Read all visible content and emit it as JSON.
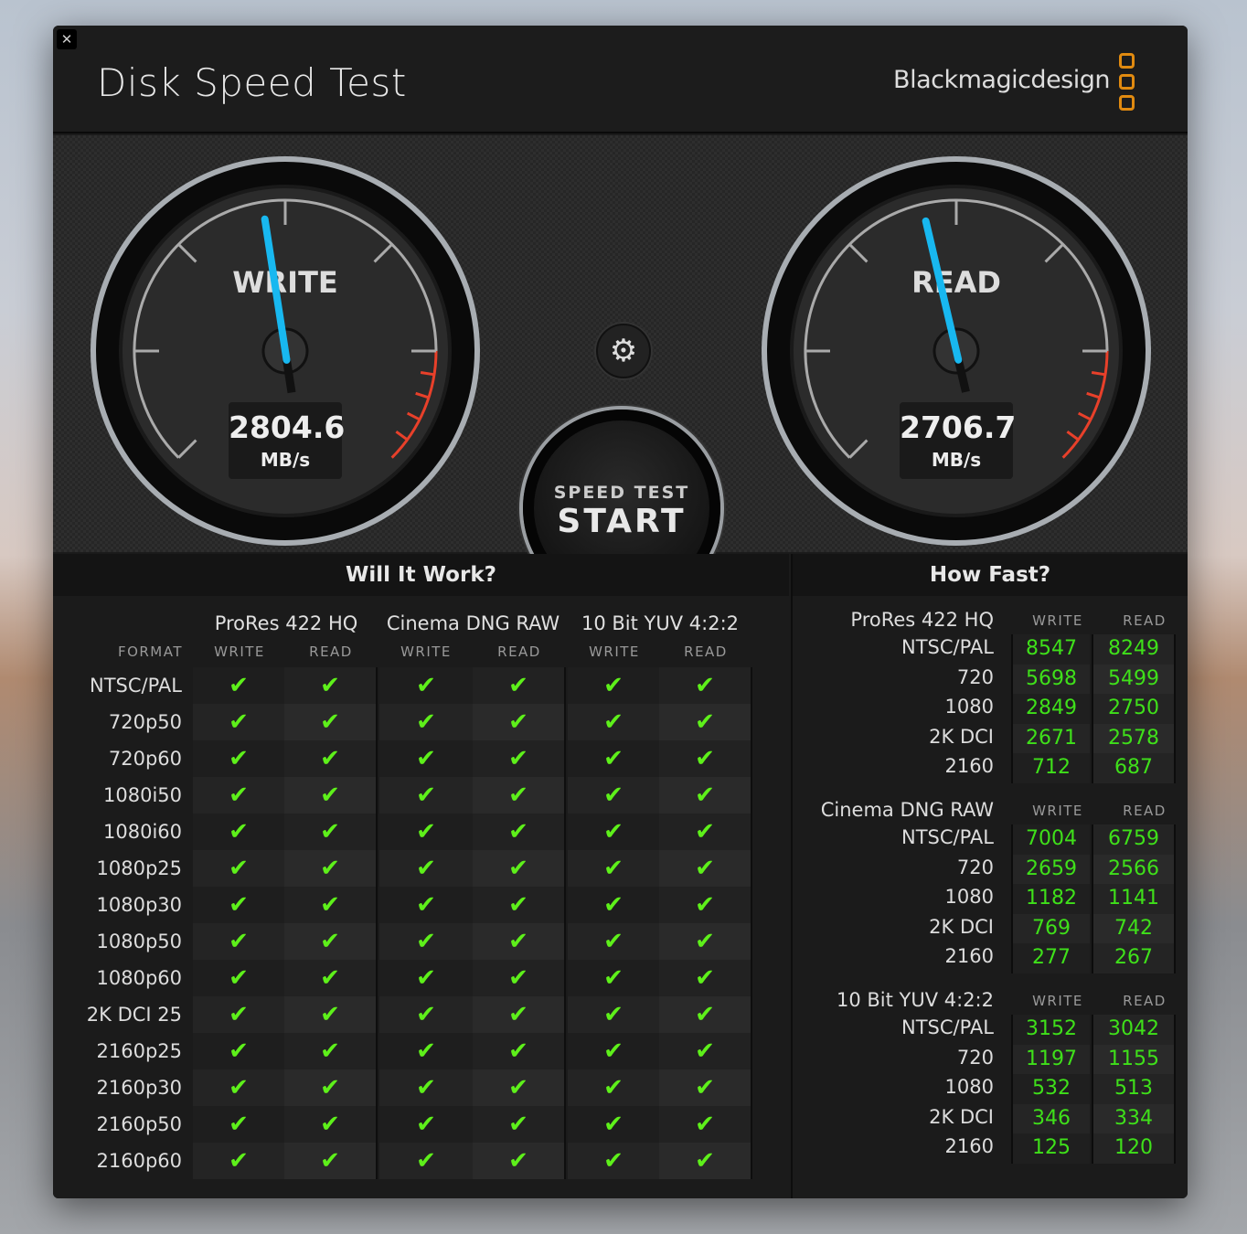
{
  "window": {
    "close_icon": "close-icon",
    "title": "Disk Speed Test",
    "brand": "Blackmagicdesign",
    "brand_color": "#e08a10"
  },
  "gauges": {
    "write": {
      "label": "WRITE",
      "value": "2804.6",
      "unit": "MB/s"
    },
    "read": {
      "label": "READ",
      "value": "2706.7",
      "unit": "MB/s"
    },
    "needle_color": "#18b8f0",
    "redline_color": "#e8402a"
  },
  "controls": {
    "settings_icon": "gear-icon",
    "start_top": "SPEED TEST",
    "start_label": "START"
  },
  "will_it_work": {
    "title": "Will It Work?",
    "format_header": "FORMAT",
    "groups": [
      "ProRes 422 HQ",
      "Cinema DNG RAW",
      "10 Bit YUV 4:2:2"
    ],
    "write_header": "WRITE",
    "read_header": "READ",
    "check_icon": "checkmark-icon",
    "check_color": "#5ef01a",
    "rows": [
      {
        "format": "NTSC/PAL",
        "results": [
          "✔",
          "✔",
          "✔",
          "✔",
          "✔",
          "✔"
        ]
      },
      {
        "format": "720p50",
        "results": [
          "✔",
          "✔",
          "✔",
          "✔",
          "✔",
          "✔"
        ]
      },
      {
        "format": "720p60",
        "results": [
          "✔",
          "✔",
          "✔",
          "✔",
          "✔",
          "✔"
        ]
      },
      {
        "format": "1080i50",
        "results": [
          "✔",
          "✔",
          "✔",
          "✔",
          "✔",
          "✔"
        ]
      },
      {
        "format": "1080i60",
        "results": [
          "✔",
          "✔",
          "✔",
          "✔",
          "✔",
          "✔"
        ]
      },
      {
        "format": "1080p25",
        "results": [
          "✔",
          "✔",
          "✔",
          "✔",
          "✔",
          "✔"
        ]
      },
      {
        "format": "1080p30",
        "results": [
          "✔",
          "✔",
          "✔",
          "✔",
          "✔",
          "✔"
        ]
      },
      {
        "format": "1080p50",
        "results": [
          "✔",
          "✔",
          "✔",
          "✔",
          "✔",
          "✔"
        ]
      },
      {
        "format": "1080p60",
        "results": [
          "✔",
          "✔",
          "✔",
          "✔",
          "✔",
          "✔"
        ]
      },
      {
        "format": "2K DCI 25",
        "results": [
          "✔",
          "✔",
          "✔",
          "✔",
          "✔",
          "✔"
        ]
      },
      {
        "format": "2160p25",
        "results": [
          "✔",
          "✔",
          "✔",
          "✔",
          "✔",
          "✔"
        ]
      },
      {
        "format": "2160p30",
        "results": [
          "✔",
          "✔",
          "✔",
          "✔",
          "✔",
          "✔"
        ]
      },
      {
        "format": "2160p50",
        "results": [
          "✔",
          "✔",
          "✔",
          "✔",
          "✔",
          "✔"
        ]
      },
      {
        "format": "2160p60",
        "results": [
          "✔",
          "✔",
          "✔",
          "✔",
          "✔",
          "✔"
        ]
      }
    ]
  },
  "how_fast": {
    "title": "How Fast?",
    "write_header": "WRITE",
    "read_header": "READ",
    "sections": [
      {
        "codec": "ProRes 422 HQ",
        "rows": [
          {
            "format": "NTSC/PAL",
            "write": "8547",
            "read": "8249"
          },
          {
            "format": "720",
            "write": "5698",
            "read": "5499"
          },
          {
            "format": "1080",
            "write": "2849",
            "read": "2750"
          },
          {
            "format": "2K DCI",
            "write": "2671",
            "read": "2578"
          },
          {
            "format": "2160",
            "write": "712",
            "read": "687"
          }
        ]
      },
      {
        "codec": "Cinema DNG RAW",
        "rows": [
          {
            "format": "NTSC/PAL",
            "write": "7004",
            "read": "6759"
          },
          {
            "format": "720",
            "write": "2659",
            "read": "2566"
          },
          {
            "format": "1080",
            "write": "1182",
            "read": "1141"
          },
          {
            "format": "2K DCI",
            "write": "769",
            "read": "742"
          },
          {
            "format": "2160",
            "write": "277",
            "read": "267"
          }
        ]
      },
      {
        "codec": "10 Bit YUV 4:2:2",
        "rows": [
          {
            "format": "NTSC/PAL",
            "write": "3152",
            "read": "3042"
          },
          {
            "format": "720",
            "write": "1197",
            "read": "1155"
          },
          {
            "format": "1080",
            "write": "532",
            "read": "513"
          },
          {
            "format": "2K DCI",
            "write": "346",
            "read": "334"
          },
          {
            "format": "2160",
            "write": "125",
            "read": "120"
          }
        ]
      }
    ]
  }
}
